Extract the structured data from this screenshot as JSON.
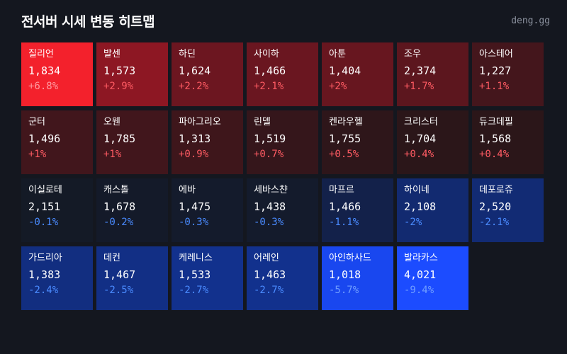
{
  "header": {
    "title": "전서버 시세 변동 히트맵",
    "brand": "deng.gg"
  },
  "tiles": [
    {
      "name": "질리언",
      "price": "1,834",
      "change": "+6.8%",
      "dir": "up",
      "bg": "#f3212c"
    },
    {
      "name": "발센",
      "price": "1,573",
      "change": "+2.9%",
      "dir": "up",
      "bg": "#8d1723"
    },
    {
      "name": "하딘",
      "price": "1,624",
      "change": "+2.2%",
      "dir": "up",
      "bg": "#6c1620"
    },
    {
      "name": "사이하",
      "price": "1,466",
      "change": "+2.1%",
      "dir": "up",
      "bg": "#6a1620"
    },
    {
      "name": "아툰",
      "price": "1,404",
      "change": "+2%",
      "dir": "up",
      "bg": "#67161f"
    },
    {
      "name": "조우",
      "price": "2,374",
      "change": "+1.7%",
      "dir": "up",
      "bg": "#5c161e"
    },
    {
      "name": "아스테어",
      "price": "1,227",
      "change": "+1.1%",
      "dir": "up",
      "bg": "#44161c"
    },
    {
      "name": "군터",
      "price": "1,496",
      "change": "+1%",
      "dir": "up",
      "bg": "#41161c"
    },
    {
      "name": "오웬",
      "price": "1,785",
      "change": "+1%",
      "dir": "up",
      "bg": "#41161c"
    },
    {
      "name": "파아그리오",
      "price": "1,313",
      "change": "+0.9%",
      "dir": "up",
      "bg": "#3e161b"
    },
    {
      "name": "린델",
      "price": "1,519",
      "change": "+0.7%",
      "dir": "up",
      "bg": "#35161b"
    },
    {
      "name": "켄라우헬",
      "price": "1,755",
      "change": "+0.5%",
      "dir": "up",
      "bg": "#2e161a"
    },
    {
      "name": "크리스터",
      "price": "1,704",
      "change": "+0.4%",
      "dir": "up",
      "bg": "#2b1619"
    },
    {
      "name": "듀크데필",
      "price": "1,568",
      "change": "+0.4%",
      "dir": "up",
      "bg": "#2b1619"
    },
    {
      "name": "이실로테",
      "price": "2,151",
      "change": "-0.1%",
      "dir": "down",
      "bg": "#141a26"
    },
    {
      "name": "캐스톨",
      "price": "1,678",
      "change": "-0.2%",
      "dir": "down",
      "bg": "#141a29"
    },
    {
      "name": "에바",
      "price": "1,475",
      "change": "-0.3%",
      "dir": "down",
      "bg": "#141b2c"
    },
    {
      "name": "세바스챤",
      "price": "1,438",
      "change": "-0.3%",
      "dir": "down",
      "bg": "#141b2c"
    },
    {
      "name": "마프르",
      "price": "1,466",
      "change": "-1.1%",
      "dir": "down",
      "bg": "#13214a"
    },
    {
      "name": "하이네",
      "price": "2,108",
      "change": "-2%",
      "dir": "down",
      "bg": "#122a70"
    },
    {
      "name": "데포로쥬",
      "price": "2,520",
      "change": "-2.1%",
      "dir": "down",
      "bg": "#122b74"
    },
    {
      "name": "가드리아",
      "price": "1,383",
      "change": "-2.4%",
      "dir": "down",
      "bg": "#122e80"
    },
    {
      "name": "데컨",
      "price": "1,467",
      "change": "-2.5%",
      "dir": "down",
      "bg": "#122f85"
    },
    {
      "name": "케레니스",
      "price": "1,533",
      "change": "-2.7%",
      "dir": "down",
      "bg": "#12318d"
    },
    {
      "name": "어레인",
      "price": "1,463",
      "change": "-2.7%",
      "dir": "down",
      "bg": "#12318d"
    },
    {
      "name": "아인하사드",
      "price": "1,018",
      "change": "-5.7%",
      "dir": "down",
      "bg": "#1947ef"
    },
    {
      "name": "발라카스",
      "price": "4,021",
      "change": "-9.4%",
      "dir": "down",
      "bg": "#1c4cff"
    }
  ]
}
